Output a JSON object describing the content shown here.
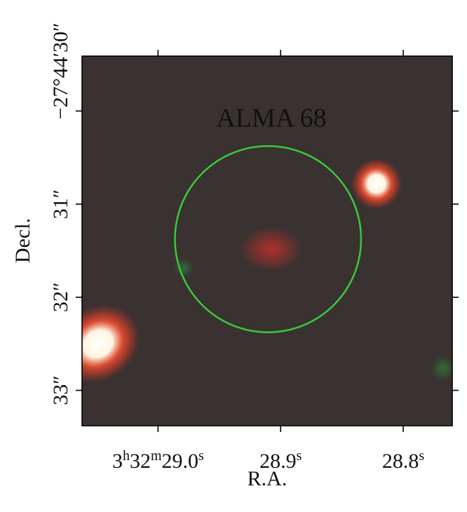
{
  "chart_data": {
    "type": "image",
    "annotation": "ALMA 68",
    "xlabel": "R.A.",
    "ylabel": "Decl.",
    "xlim": [
      29.062,
      28.76
    ],
    "ylim": [
      29.41,
      33.38
    ],
    "xticks": [
      {
        "value": 29.0,
        "label": "3h32m29.0s"
      },
      {
        "value": 28.9,
        "label": "28.9s"
      },
      {
        "value": 28.8,
        "label": "28.8s"
      }
    ],
    "yticks": [
      {
        "value": 30,
        "label": "−27°44′30″"
      },
      {
        "value": 31,
        "label": "31″"
      },
      {
        "value": 32,
        "label": "32″"
      },
      {
        "value": 33,
        "label": "33″"
      }
    ],
    "aperture": {
      "x": 28.9103,
      "y": 31.376,
      "radius": 1.0,
      "color": "#3cc83c"
    }
  }
}
